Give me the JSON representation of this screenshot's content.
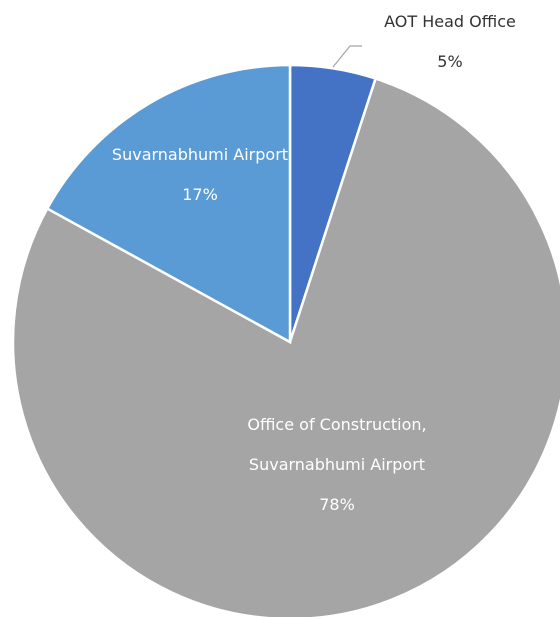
{
  "chart_data": {
    "type": "pie",
    "categories": [
      "AOT Head Office",
      "Office of Construction, Suvarnabhumi Airport",
      "Suvarnabhumi Airport"
    ],
    "values": [
      5,
      78,
      17
    ],
    "value_labels": [
      "5%",
      "78%",
      "17%"
    ],
    "colors": [
      "#4472c4",
      "#a5a5a5",
      "#5b9bd5"
    ]
  }
}
